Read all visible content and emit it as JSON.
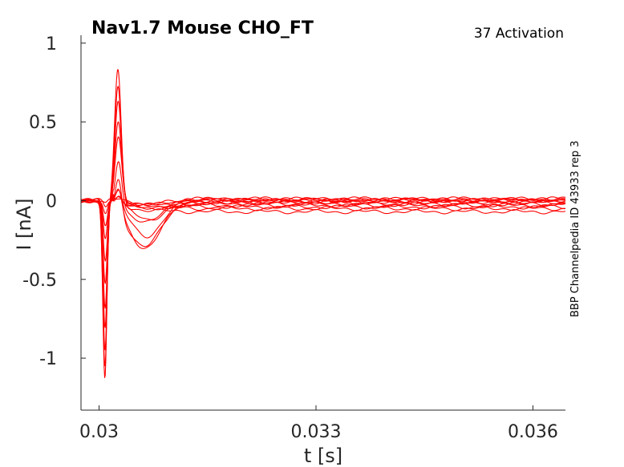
{
  "chart_data": {
    "type": "line",
    "title": "Nav1.7  Mouse  CHO_FT",
    "annotation": "37  Activation",
    "side_text": "BBP Channelpedia ID 43933 rep 3",
    "xlabel": "t [s]",
    "ylabel": "I [nA]",
    "xlim": [
      0.02975,
      0.03645
    ],
    "ylim": [
      -1.33,
      1.05
    ],
    "x_ticks": [
      0.03,
      0.033,
      0.036
    ],
    "x_tick_labels": [
      "0.03",
      "0.033",
      "0.036"
    ],
    "y_ticks": [
      1,
      0.5,
      0,
      -0.5,
      -1
    ],
    "y_tick_labels": [
      "1",
      "0.5",
      "0",
      "-0.5",
      "-1"
    ],
    "grid": false,
    "series_color": "#ff0000",
    "series": [
      {
        "inward_peak": -0.02,
        "outward_peak": 0.01,
        "tail_level": 0.01
      },
      {
        "inward_peak": -0.04,
        "outward_peak": 0.03,
        "tail_level": 0.01
      },
      {
        "inward_peak": -0.08,
        "outward_peak": 0.06,
        "tail_level": 0.005
      },
      {
        "inward_peak": -0.15,
        "outward_peak": 0.1,
        "tail_level": 0.0
      },
      {
        "inward_peak": -0.25,
        "outward_peak": 0.15,
        "tail_level": 0.0
      },
      {
        "inward_peak": -0.38,
        "outward_peak": 0.22,
        "tail_level": -0.01
      },
      {
        "inward_peak": -0.52,
        "outward_peak": 0.3,
        "tail_level": -0.01
      },
      {
        "inward_peak": -0.68,
        "outward_peak": 0.4,
        "tail_level": -0.02
      },
      {
        "inward_peak": -0.82,
        "outward_peak": 0.52,
        "tail_level": -0.03
      },
      {
        "inward_peak": -0.95,
        "outward_peak": 0.65,
        "tail_level": -0.04
      },
      {
        "inward_peak": -1.05,
        "outward_peak": 0.75,
        "tail_level": -0.05
      },
      {
        "inward_peak": -1.13,
        "outward_peak": 0.85,
        "tail_level": -0.07
      }
    ]
  }
}
